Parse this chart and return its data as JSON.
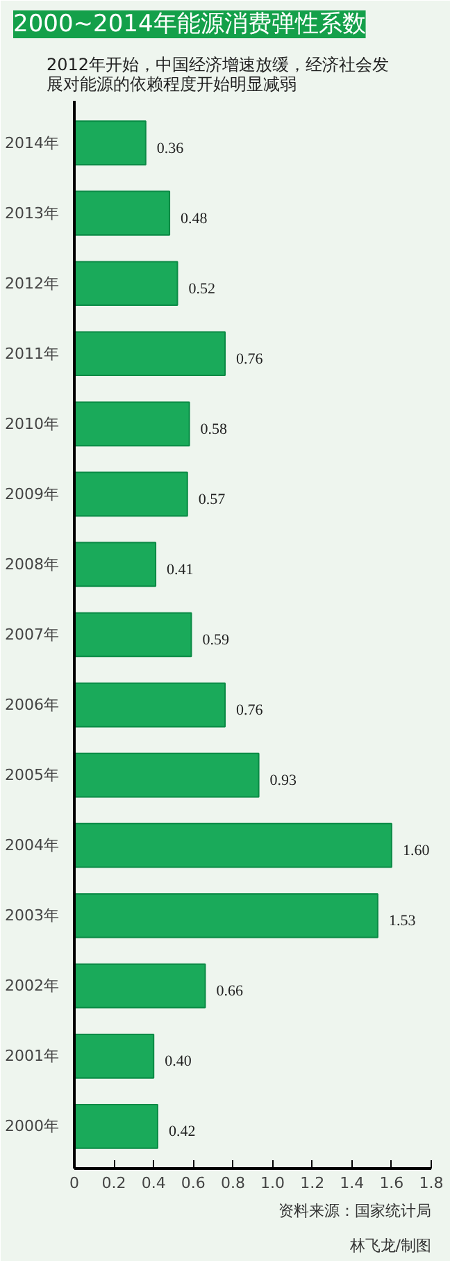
{
  "chart_data": {
    "type": "bar",
    "orientation": "horizontal",
    "title": "2000~2014年能源消费弹性系数",
    "subtitle": "2012年开始，中国经济增速放缓，经济社会发展对能源的依赖程度开始明显减弱",
    "categories": [
      "2014年",
      "2013年",
      "2012年",
      "2011年",
      "2010年",
      "2009年",
      "2008年",
      "2007年",
      "2006年",
      "2005年",
      "2004年",
      "2003年",
      "2002年",
      "2001年",
      "2000年"
    ],
    "values": [
      0.36,
      0.48,
      0.52,
      0.76,
      0.58,
      0.57,
      0.41,
      0.59,
      0.76,
      0.93,
      1.6,
      1.53,
      0.66,
      0.4,
      0.42
    ],
    "value_labels": [
      "0.36",
      "0.48",
      "0.52",
      "0.76",
      "0.58",
      "0.57",
      "0.41",
      "0.59",
      "0.76",
      "0.93",
      "1.60",
      "1.53",
      "0.66",
      "0.40",
      "0.42"
    ],
    "color": "#1aaa5a",
    "xlim": [
      0,
      1.8
    ],
    "xticks": [
      0,
      0.2,
      0.4,
      0.6,
      0.8,
      {
        "value": 1.0,
        "label": "1.0"
      },
      1.2,
      1.4,
      1.6,
      1.8
    ],
    "grid": false,
    "annotations": [
      "资料来源：国家统计局",
      "林飞龙/制图"
    ]
  }
}
